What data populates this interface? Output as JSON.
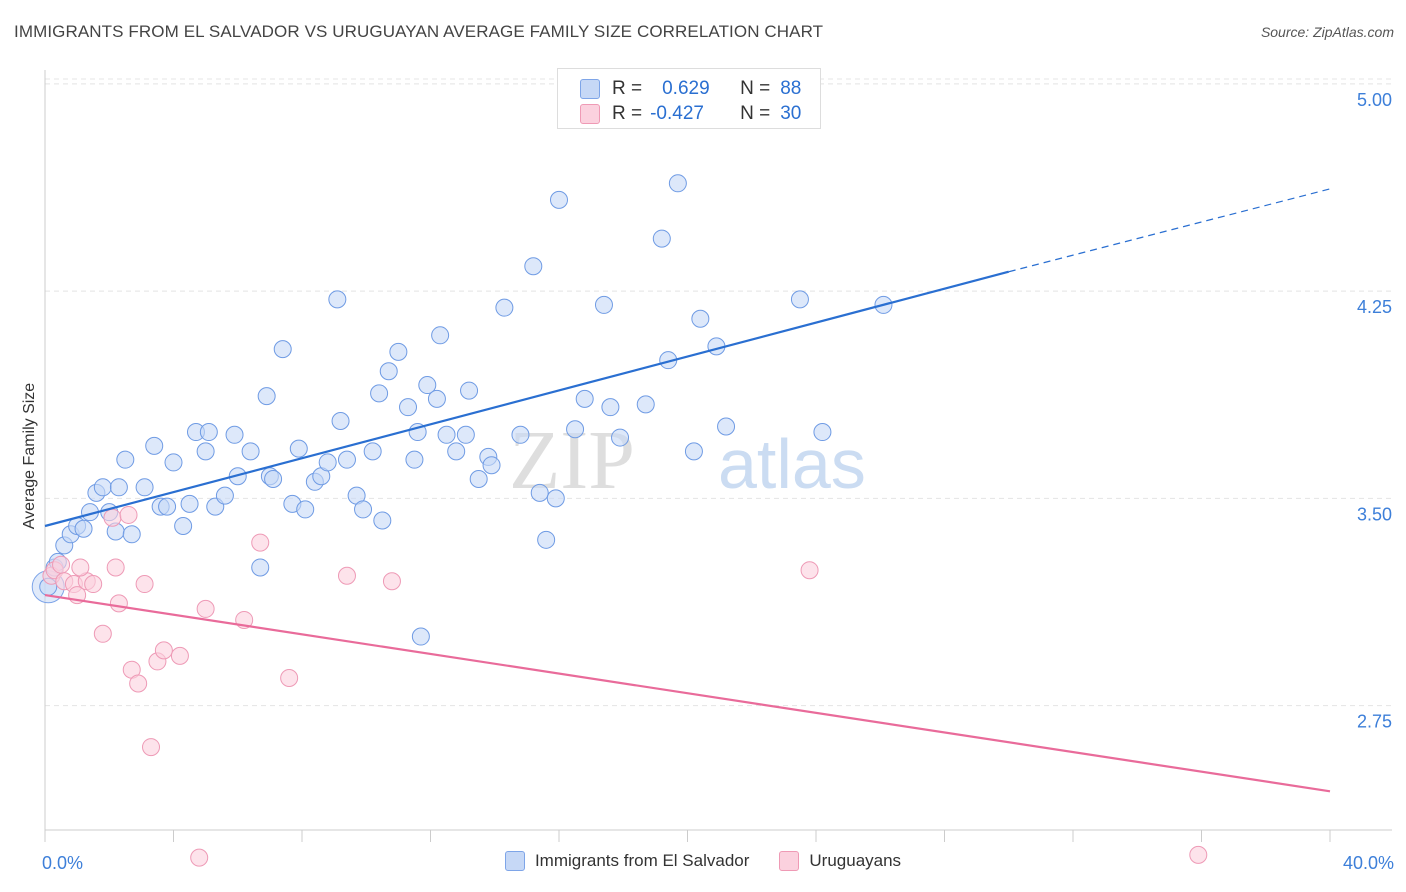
{
  "title": "IMMIGRANTS FROM EL SALVADOR VS URUGUAYAN AVERAGE FAMILY SIZE CORRELATION CHART",
  "source": "Source: ZipAtlas.com",
  "watermark": {
    "zip": "ZIP",
    "atlas": "atlas"
  },
  "colors": {
    "blue": "#2a6fd1",
    "blue_fill": "#c6d8f6",
    "pink": "#e96b9a",
    "pink_fill": "#fbd1de",
    "axis_text": "#3d7fd9",
    "grid": "#e4e4e4"
  },
  "legend_stats": [
    {
      "r_label": "R =",
      "r_value": "0.629",
      "n_label": "N =",
      "n_value": "88"
    },
    {
      "r_label": "R =",
      "r_value": "-0.427",
      "n_label": "N =",
      "n_value": "30"
    }
  ],
  "legend_bottom": [
    "Immigrants from El Salvador",
    "Uruguayans"
  ],
  "chart_data": {
    "type": "scatter",
    "title": "IMMIGRANTS FROM EL SALVADOR VS URUGUAYAN AVERAGE FAMILY SIZE CORRELATION CHART",
    "xlabel": "",
    "ylabel": "Average Family Size",
    "xlim": [
      0,
      40
    ],
    "ylim": [
      2.3,
      5.05
    ],
    "x_tick_labels": [
      "0.0%",
      "40.0%"
    ],
    "y_ticks": [
      2.75,
      3.5,
      4.25,
      5.0
    ],
    "y_tick_labels": [
      "2.75",
      "3.50",
      "4.25",
      "5.00"
    ],
    "grid": true,
    "series": [
      {
        "name": "Immigrants from El Salvador",
        "color": "#2a6fd1",
        "fill": "#c6d8f6",
        "regression": {
          "x_start": 0,
          "y_start": 3.4,
          "x_solid_end": 30,
          "y_solid_end": 4.32,
          "x_end": 40,
          "y_end": 4.62
        },
        "points": [
          [
            0.1,
            3.18
          ],
          [
            0.3,
            3.25
          ],
          [
            0.4,
            3.27
          ],
          [
            0.6,
            3.33
          ],
          [
            0.8,
            3.37
          ],
          [
            1.0,
            3.4
          ],
          [
            1.2,
            3.39
          ],
          [
            1.4,
            3.45
          ],
          [
            1.6,
            3.52
          ],
          [
            1.8,
            3.54
          ],
          [
            2.0,
            3.45
          ],
          [
            2.2,
            3.38
          ],
          [
            2.3,
            3.54
          ],
          [
            2.5,
            3.64
          ],
          [
            2.7,
            3.37
          ],
          [
            3.1,
            3.54
          ],
          [
            3.4,
            3.69
          ],
          [
            3.6,
            3.47
          ],
          [
            3.8,
            3.47
          ],
          [
            4.0,
            3.63
          ],
          [
            4.3,
            3.4
          ],
          [
            4.5,
            3.48
          ],
          [
            4.7,
            3.74
          ],
          [
            5.0,
            3.67
          ],
          [
            5.1,
            3.74
          ],
          [
            5.3,
            3.47
          ],
          [
            5.6,
            3.51
          ],
          [
            5.9,
            3.73
          ],
          [
            6.0,
            3.58
          ],
          [
            6.4,
            3.67
          ],
          [
            6.7,
            3.25
          ],
          [
            6.9,
            3.87
          ],
          [
            7.0,
            3.58
          ],
          [
            7.1,
            3.57
          ],
          [
            7.4,
            4.04
          ],
          [
            7.7,
            3.48
          ],
          [
            7.9,
            3.68
          ],
          [
            8.1,
            3.46
          ],
          [
            8.4,
            3.56
          ],
          [
            8.6,
            3.58
          ],
          [
            8.8,
            3.63
          ],
          [
            9.1,
            4.22
          ],
          [
            9.2,
            3.78
          ],
          [
            9.4,
            3.64
          ],
          [
            9.7,
            3.51
          ],
          [
            9.9,
            3.46
          ],
          [
            10.2,
            3.67
          ],
          [
            10.4,
            3.88
          ],
          [
            10.5,
            3.42
          ],
          [
            10.7,
            3.96
          ],
          [
            11.0,
            4.03
          ],
          [
            11.3,
            3.83
          ],
          [
            11.5,
            3.64
          ],
          [
            11.6,
            3.74
          ],
          [
            11.9,
            3.91
          ],
          [
            12.2,
            3.86
          ],
          [
            12.3,
            4.09
          ],
          [
            12.5,
            3.73
          ],
          [
            12.8,
            3.67
          ],
          [
            13.1,
            3.73
          ],
          [
            13.2,
            3.89
          ],
          [
            13.5,
            3.57
          ],
          [
            13.8,
            3.65
          ],
          [
            13.9,
            3.62
          ],
          [
            14.3,
            4.19
          ],
          [
            14.8,
            3.73
          ],
          [
            15.2,
            4.34
          ],
          [
            15.4,
            3.52
          ],
          [
            15.6,
            3.35
          ],
          [
            15.9,
            3.5
          ],
          [
            16.0,
            4.58
          ],
          [
            16.5,
            3.75
          ],
          [
            16.8,
            3.86
          ],
          [
            17.4,
            4.2
          ],
          [
            17.6,
            3.83
          ],
          [
            17.9,
            3.72
          ],
          [
            18.7,
            3.84
          ],
          [
            19.2,
            4.44
          ],
          [
            19.4,
            4.0
          ],
          [
            19.7,
            4.64
          ],
          [
            20.2,
            3.67
          ],
          [
            20.4,
            4.15
          ],
          [
            20.9,
            4.05
          ],
          [
            21.2,
            3.76
          ],
          [
            23.5,
            4.22
          ],
          [
            24.2,
            3.74
          ],
          [
            26.1,
            4.2
          ],
          [
            11.7,
            3.0
          ]
        ]
      },
      {
        "name": "Uruguayans",
        "color": "#e96b9a",
        "fill": "#fbd1de",
        "regression": {
          "x_start": 0,
          "y_start": 3.15,
          "x_end": 40,
          "y_end": 2.44
        },
        "points": [
          [
            0.2,
            3.22
          ],
          [
            0.3,
            3.24
          ],
          [
            0.5,
            3.26
          ],
          [
            0.6,
            3.2
          ],
          [
            0.9,
            3.19
          ],
          [
            1.0,
            3.15
          ],
          [
            1.3,
            3.2
          ],
          [
            1.5,
            3.19
          ],
          [
            1.8,
            3.01
          ],
          [
            2.1,
            3.43
          ],
          [
            2.2,
            3.25
          ],
          [
            2.3,
            3.12
          ],
          [
            2.6,
            3.44
          ],
          [
            2.7,
            2.88
          ],
          [
            2.9,
            2.83
          ],
          [
            3.1,
            3.19
          ],
          [
            3.5,
            2.91
          ],
          [
            3.7,
            2.95
          ],
          [
            4.2,
            2.93
          ],
          [
            4.8,
            2.2
          ],
          [
            5.0,
            3.1
          ],
          [
            6.2,
            3.06
          ],
          [
            6.7,
            3.34
          ],
          [
            7.6,
            2.85
          ],
          [
            9.4,
            3.22
          ],
          [
            10.8,
            3.2
          ],
          [
            23.8,
            3.24
          ],
          [
            35.9,
            2.21
          ],
          [
            3.3,
            2.6
          ],
          [
            1.1,
            3.25
          ]
        ]
      }
    ]
  }
}
